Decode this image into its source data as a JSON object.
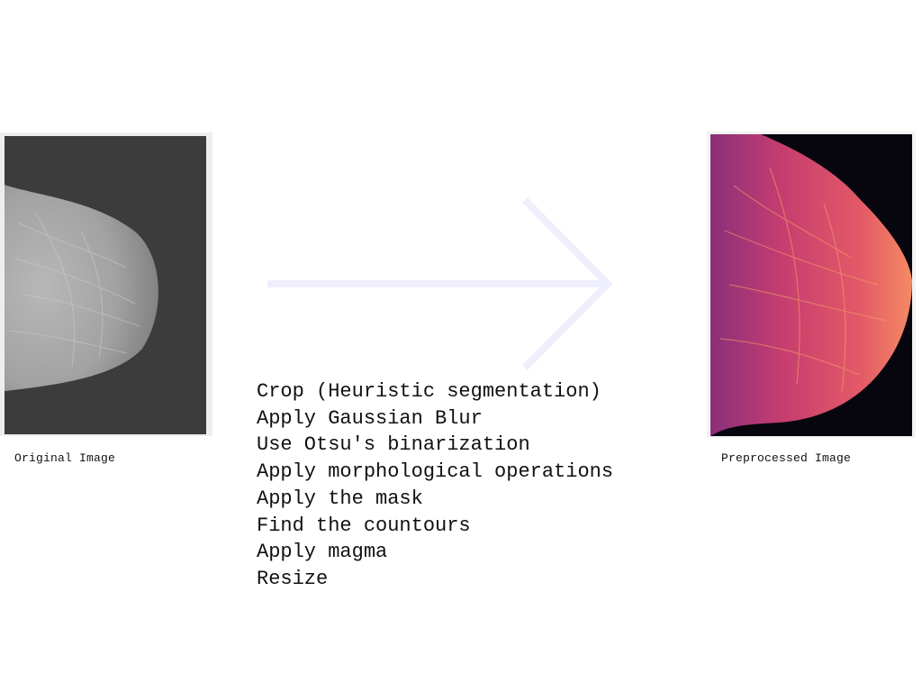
{
  "original": {
    "caption": "Original Image"
  },
  "processed": {
    "caption": "Preprocessed Image"
  },
  "steps": [
    "Crop (Heuristic segmentation)",
    "Apply Gaussian Blur",
    "Use Otsu's binarization",
    "Apply morphological operations",
    "Apply the mask",
    "Find the countours",
    "Apply magma",
    "Resize"
  ],
  "colors": {
    "background": "#ffffff",
    "arrow": "#eeeefc",
    "mammogram_background": "#3c3c3c",
    "magma_dark": "#07060f",
    "magma_purple": "#8a2f7a",
    "magma_pink": "#d8486e",
    "magma_orange": "#f58a63"
  }
}
